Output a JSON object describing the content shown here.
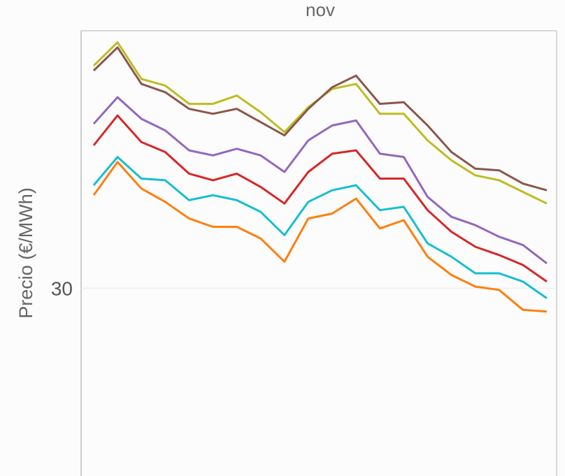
{
  "chart_data": {
    "type": "line",
    "title": "nov",
    "xlabel": "",
    "ylabel": "Precio (€/MWh)",
    "x": [
      1,
      2,
      3,
      4,
      5,
      6,
      7,
      8,
      9,
      10,
      11,
      12,
      13,
      14,
      15,
      16,
      17,
      18,
      19,
      20
    ],
    "ylim": [
      18.7,
      45.5
    ],
    "yticks": [
      30
    ],
    "grid": true,
    "legend": "none",
    "series": [
      {
        "color": "#bcbd22",
        "values": [
          43.4,
          44.8,
          42.6,
          42.2,
          41.1,
          41.1,
          41.6,
          40.6,
          39.4,
          40.9,
          42.0,
          42.3,
          40.5,
          40.5,
          38.9,
          37.7,
          36.8,
          36.5,
          35.8,
          35.1
        ]
      },
      {
        "color": "#8c564b",
        "values": [
          43.1,
          44.5,
          42.3,
          41.8,
          40.8,
          40.5,
          40.8,
          40.0,
          39.2,
          40.8,
          42.1,
          42.8,
          41.1,
          41.2,
          39.8,
          38.2,
          37.2,
          37.1,
          36.3,
          35.9
        ]
      },
      {
        "color": "#9467bd",
        "values": [
          39.9,
          41.5,
          40.2,
          39.5,
          38.3,
          38.0,
          38.4,
          38.0,
          37.0,
          38.9,
          39.8,
          40.1,
          38.1,
          37.9,
          35.5,
          34.3,
          33.8,
          33.1,
          32.6,
          31.5
        ]
      },
      {
        "color": "#d62728",
        "values": [
          38.6,
          40.4,
          38.8,
          38.2,
          36.9,
          36.5,
          36.9,
          36.1,
          35.1,
          37.0,
          38.1,
          38.3,
          36.6,
          36.6,
          34.7,
          33.4,
          32.5,
          32.0,
          31.4,
          30.4
        ]
      },
      {
        "color": "#17becf",
        "values": [
          36.2,
          37.9,
          36.6,
          36.5,
          35.3,
          35.6,
          35.3,
          34.6,
          33.2,
          35.2,
          35.9,
          36.2,
          34.7,
          34.9,
          32.7,
          31.9,
          30.9,
          30.9,
          30.4,
          29.4
        ]
      },
      {
        "color": "#ff7f0e",
        "values": [
          35.6,
          37.6,
          36.0,
          35.2,
          34.2,
          33.7,
          33.7,
          33.0,
          31.6,
          34.2,
          34.5,
          35.4,
          33.6,
          34.1,
          31.9,
          30.8,
          30.1,
          29.9,
          28.7,
          28.6
        ]
      }
    ]
  }
}
